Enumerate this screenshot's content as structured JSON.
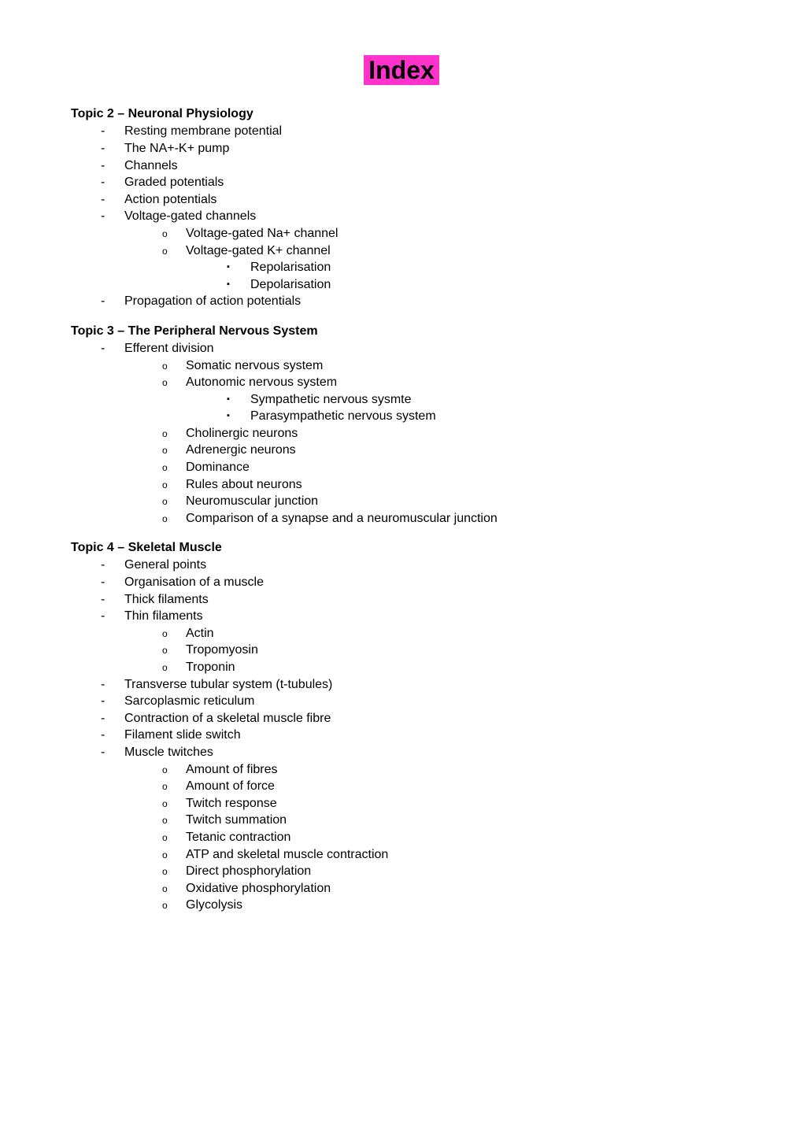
{
  "title": "Index",
  "styling": {
    "highlight_bg": "#ff33cc",
    "title_fontsize": 32,
    "body_fontsize": 16,
    "heading_fontsize": 16,
    "text_color": "#000000",
    "background_color": "#ffffff",
    "font_family": "Arial"
  },
  "topics": [
    {
      "heading": "Topic 2 – Neuronal Physiology",
      "items": [
        {
          "text": "Resting membrane potential"
        },
        {
          "text": "The NA+-K+ pump"
        },
        {
          "text": "Channels"
        },
        {
          "text": "Graded potentials"
        },
        {
          "text": "Action potentials"
        },
        {
          "text": "Voltage-gated channels",
          "children": [
            {
              "text": "Voltage-gated Na+ channel"
            },
            {
              "text": "Voltage-gated K+ channel",
              "children": [
                {
                  "text": "Repolarisation"
                },
                {
                  "text": "Depolarisation"
                }
              ]
            }
          ]
        },
        {
          "text": "Propagation of action potentials"
        }
      ]
    },
    {
      "heading": "Topic 3 – The Peripheral Nervous System",
      "items": [
        {
          "text": "Efferent division",
          "children": [
            {
              "text": "Somatic nervous system"
            },
            {
              "text": "Autonomic nervous system",
              "children": [
                {
                  "text": "Sympathetic nervous sysmte"
                },
                {
                  "text": "Parasympathetic nervous system"
                }
              ]
            },
            {
              "text": "Cholinergic neurons"
            },
            {
              "text": "Adrenergic neurons"
            },
            {
              "text": "Dominance"
            },
            {
              "text": "Rules about neurons"
            },
            {
              "text": "Neuromuscular junction"
            },
            {
              "text": "Comparison of a synapse and a neuromuscular junction"
            }
          ]
        }
      ]
    },
    {
      "heading": "Topic 4 – Skeletal Muscle",
      "items": [
        {
          "text": "General points"
        },
        {
          "text": "Organisation of a muscle"
        },
        {
          "text": "Thick filaments"
        },
        {
          "text": "Thin filaments",
          "children": [
            {
              "text": "Actin"
            },
            {
              "text": "Tropomyosin"
            },
            {
              "text": "Troponin"
            }
          ]
        },
        {
          "text": "Transverse tubular system (t-tubules)"
        },
        {
          "text": "Sarcoplasmic reticulum"
        },
        {
          "text": "Contraction of a skeletal muscle fibre"
        },
        {
          "text": "Filament slide switch"
        },
        {
          "text": "Muscle twitches",
          "children": [
            {
              "text": "Amount of fibres"
            },
            {
              "text": "Amount of force"
            },
            {
              "text": "Twitch response"
            },
            {
              "text": "Twitch summation"
            },
            {
              "text": "Tetanic contraction"
            },
            {
              "text": "ATP and skeletal muscle contraction"
            },
            {
              "text": "Direct phosphorylation"
            },
            {
              "text": "Oxidative phosphorylation"
            },
            {
              "text": "Glycolysis"
            }
          ]
        }
      ]
    }
  ]
}
